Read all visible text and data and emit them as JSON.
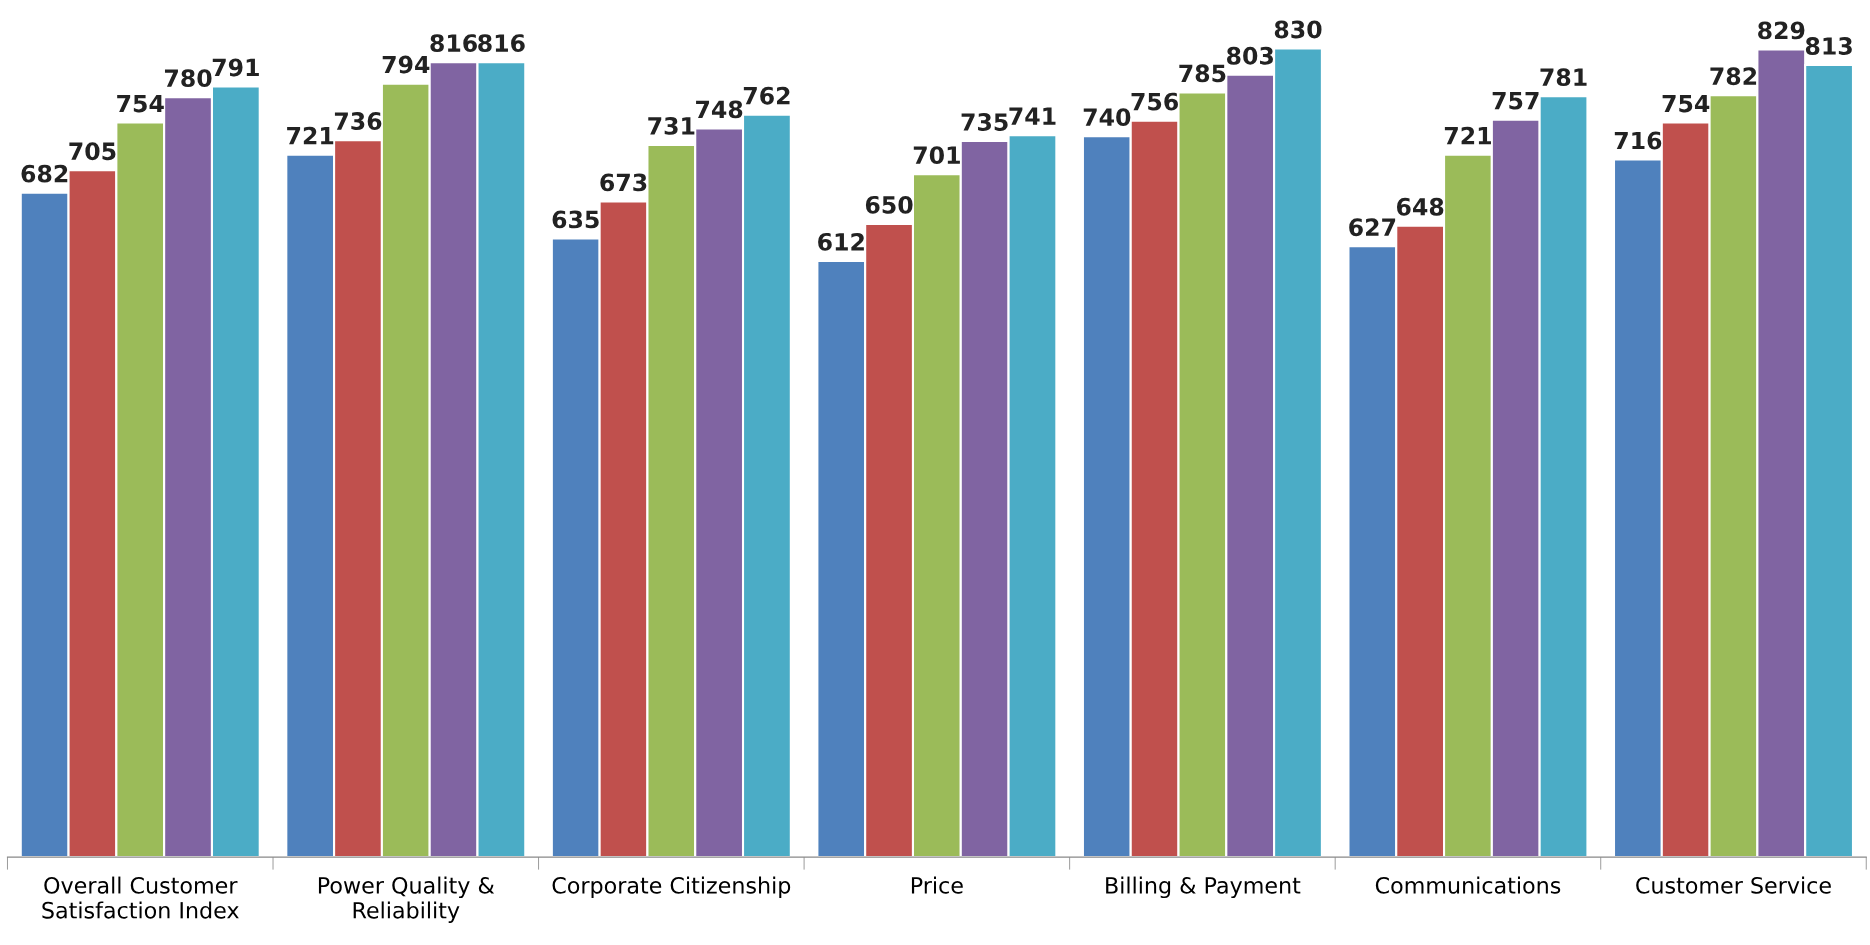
{
  "chart_data": {
    "type": "bar",
    "categories": [
      "Overall Customer\nSatisfaction Index",
      "Power Quality &\nReliability",
      "Corporate Citizenship",
      "Price",
      "Billing & Payment",
      "Communications",
      "Customer Service"
    ],
    "series": [
      {
        "color": "#4f81bd",
        "values": [
          682,
          721,
          635,
          612,
          740,
          627,
          716
        ]
      },
      {
        "color": "#c0504d",
        "values": [
          705,
          736,
          673,
          650,
          756,
          648,
          754
        ]
      },
      {
        "color": "#9bbb59",
        "values": [
          754,
          794,
          731,
          701,
          785,
          721,
          782
        ]
      },
      {
        "color": "#8064a2",
        "values": [
          780,
          816,
          748,
          735,
          803,
          757,
          829
        ]
      },
      {
        "color": "#4bacc6",
        "values": [
          791,
          816,
          762,
          741,
          830,
          781,
          813
        ]
      }
    ],
    "tick_labels": "x",
    "data_labels": true
  }
}
